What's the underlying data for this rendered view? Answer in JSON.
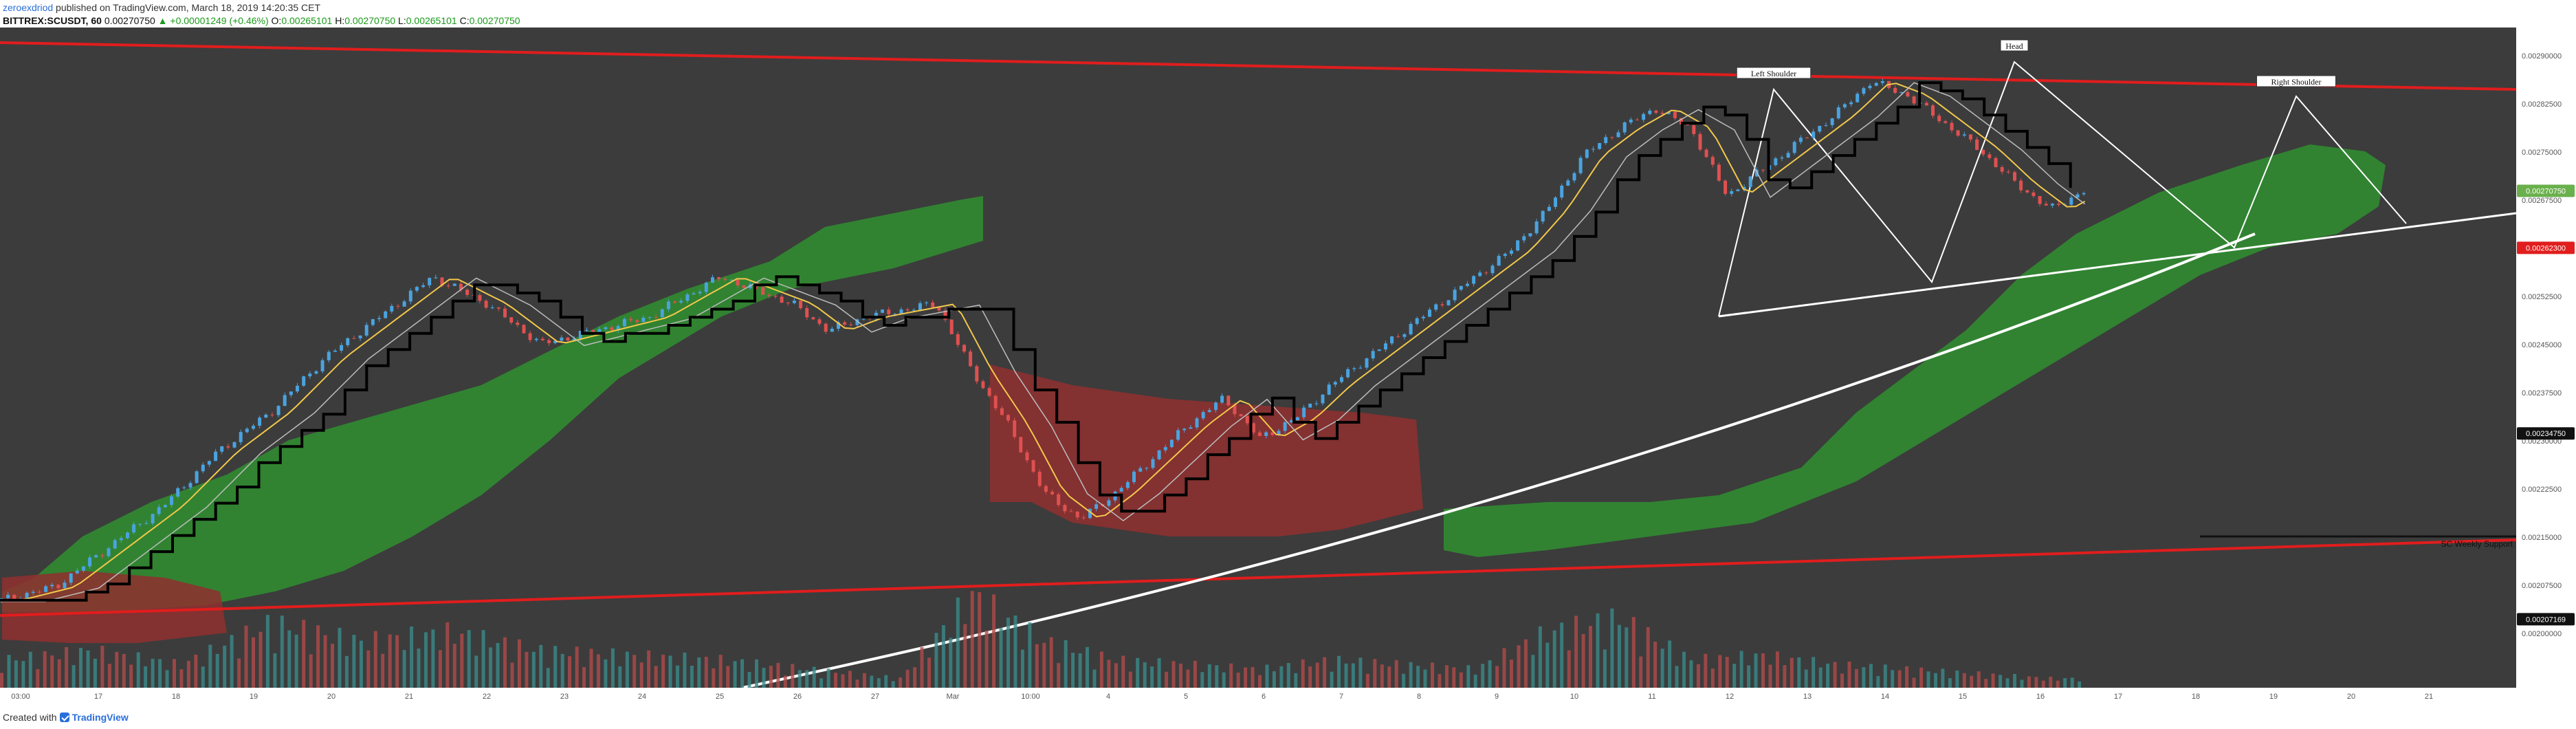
{
  "header": {
    "username": "zeroexdriod",
    "published": "published on TradingView.com, March 18, 2019 14:20:35 CET",
    "symbol": "BITTREX:SCUSDT, 60",
    "last": "0.00270750",
    "change": "+0.00001249 (+0.46%)",
    "o_label": "O:",
    "o": "0.00265101",
    "h_label": "H:",
    "h": "0.00270750",
    "l_label": "L:",
    "l": "0.00265101",
    "c_label": "C:",
    "c": "0.00270750"
  },
  "footer": {
    "created_with": "Created with",
    "brand": "TradingView"
  },
  "chart_data": {
    "type": "line",
    "subtype": "candlestick with ichimoku cloud and volume",
    "title": "",
    "xlabel": "",
    "ylabel": "",
    "x_tick_labels": [
      "03:00",
      "17",
      "18",
      "19",
      "20",
      "21",
      "22",
      "23",
      "24",
      "25",
      "26",
      "27",
      "Mar",
      "10:00",
      "4",
      "5",
      "6",
      "7",
      "8",
      "9",
      "10",
      "11",
      "12",
      "13",
      "14",
      "15",
      "16",
      "17",
      "18",
      "19",
      "20",
      "21"
    ],
    "y_tick_labels": [
      "0.00290000",
      "0.00282500",
      "0.00275000",
      "0.00267500",
      "0.00260000",
      "0.00252500",
      "0.00245000",
      "0.00237500",
      "0.00230000",
      "0.00222500",
      "0.00215000",
      "0.00207500",
      "0.00200000"
    ],
    "ylim": [
      0.00197,
      0.00295
    ],
    "price_badges": [
      {
        "value": "0.00270750",
        "color": "#6ab04c"
      },
      {
        "value": "0.00262300",
        "color": "#e11d1d"
      },
      {
        "value": "0.00234750",
        "color": "#111111"
      },
      {
        "value": "0.00207169",
        "color": "#111111"
      }
    ],
    "annotations": [
      "Left Shoulder",
      "Head",
      "Right Shoulder"
    ],
    "horizontal_label": "SC Weekly Support",
    "price_series": [
      [
        0,
        0.0021
      ],
      [
        3,
        0.00212
      ],
      [
        6,
        0.00218
      ],
      [
        9,
        0.00224
      ],
      [
        12,
        0.00232
      ],
      [
        15,
        0.00238
      ],
      [
        18,
        0.00246
      ],
      [
        21,
        0.00252
      ],
      [
        24,
        0.00258
      ],
      [
        27,
        0.00254
      ],
      [
        30,
        0.00248
      ],
      [
        33,
        0.0025
      ],
      [
        36,
        0.00252
      ],
      [
        38,
        0.00255
      ],
      [
        40,
        0.00258
      ],
      [
        42,
        0.00256
      ],
      [
        44,
        0.00254
      ],
      [
        45,
        0.00252
      ],
      [
        46,
        0.0025
      ],
      [
        47,
        0.00251
      ],
      [
        48,
        0.00252
      ],
      [
        50,
        0.00253
      ],
      [
        52,
        0.00254
      ],
      [
        54,
        0.00244
      ],
      [
        56,
        0.00236
      ],
      [
        58,
        0.00226
      ],
      [
        60,
        0.00222
      ],
      [
        62,
        0.00226
      ],
      [
        64,
        0.00231
      ],
      [
        66,
        0.00236
      ],
      [
        68,
        0.0024
      ],
      [
        70,
        0.00234
      ],
      [
        72,
        0.00237
      ],
      [
        74,
        0.00242
      ],
      [
        76,
        0.00246
      ],
      [
        78,
        0.0025
      ],
      [
        80,
        0.00254
      ],
      [
        82,
        0.00258
      ],
      [
        84,
        0.00262
      ],
      [
        86,
        0.00268
      ],
      [
        88,
        0.00276
      ],
      [
        90,
        0.0028
      ],
      [
        92,
        0.00283
      ],
      [
        94,
        0.0028
      ],
      [
        96,
        0.0027
      ],
      [
        98,
        0.00274
      ],
      [
        100,
        0.00278
      ],
      [
        102,
        0.00282
      ],
      [
        104,
        0.00287
      ],
      [
        106,
        0.00285
      ],
      [
        108,
        0.00281
      ],
      [
        110,
        0.00277
      ],
      [
        112,
        0.00272
      ],
      [
        114,
        0.00268
      ],
      [
        116,
        0.00271
      ]
    ],
    "volume_series": [
      [
        0,
        6
      ],
      [
        5,
        8
      ],
      [
        10,
        5
      ],
      [
        15,
        14
      ],
      [
        20,
        10
      ],
      [
        25,
        12
      ],
      [
        30,
        8
      ],
      [
        35,
        7
      ],
      [
        40,
        6
      ],
      [
        45,
        4
      ],
      [
        50,
        2
      ],
      [
        54,
        20
      ],
      [
        58,
        10
      ],
      [
        62,
        6
      ],
      [
        66,
        5
      ],
      [
        70,
        4
      ],
      [
        74,
        6
      ],
      [
        78,
        5
      ],
      [
        82,
        4
      ],
      [
        86,
        12
      ],
      [
        90,
        15
      ],
      [
        94,
        6
      ],
      [
        98,
        7
      ],
      [
        102,
        5
      ],
      [
        106,
        4
      ],
      [
        110,
        3
      ],
      [
        114,
        2
      ]
    ]
  }
}
